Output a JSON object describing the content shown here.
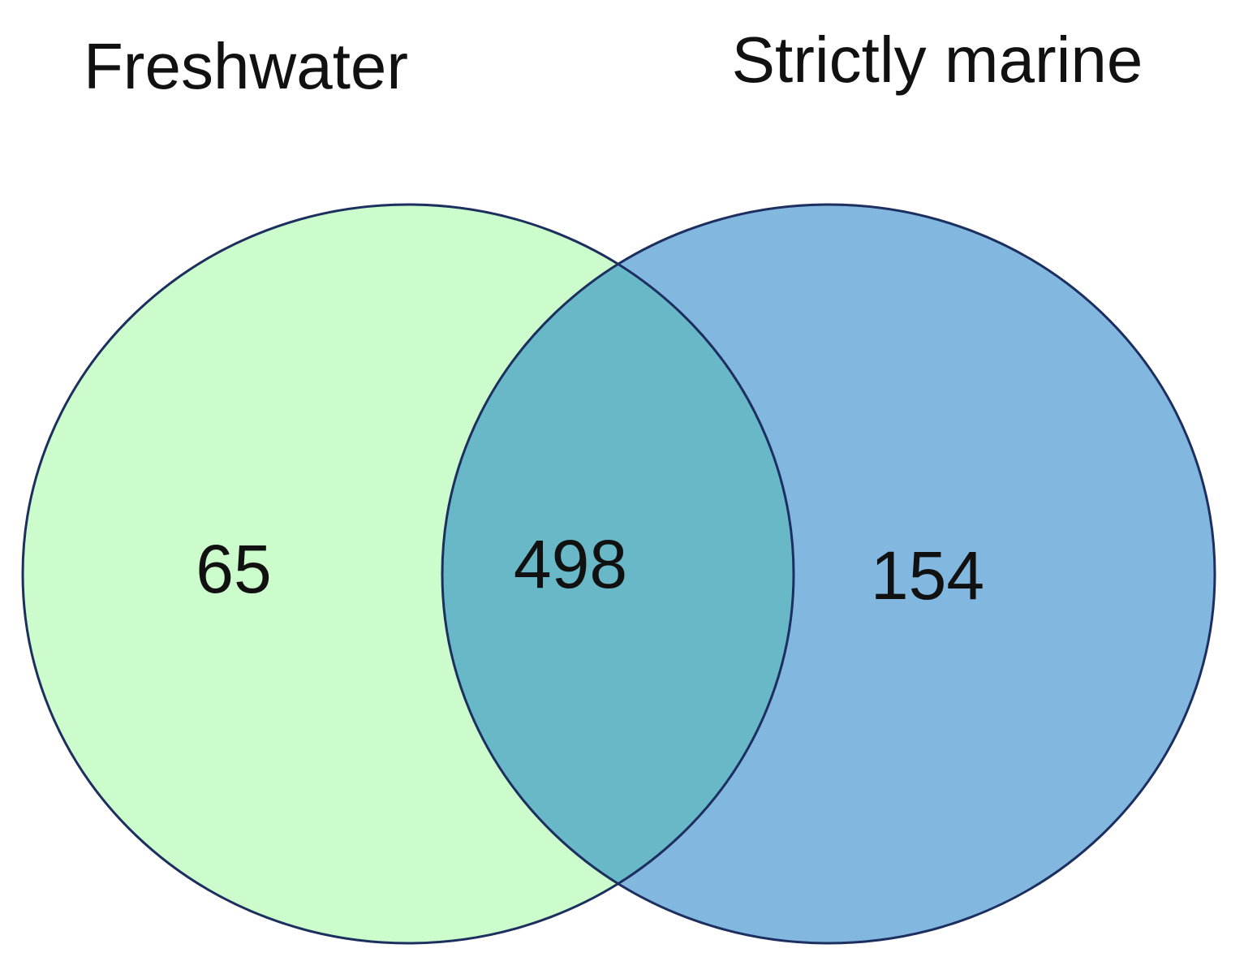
{
  "chart_data": {
    "type": "venn",
    "sets": [
      {
        "name": "Freshwater",
        "color": "#ccfccc"
      },
      {
        "name": "Strictly marine",
        "color": "#82b7e0"
      }
    ],
    "overlap_color": "#68b8c8",
    "values": [
      65,
      498,
      154
    ]
  }
}
